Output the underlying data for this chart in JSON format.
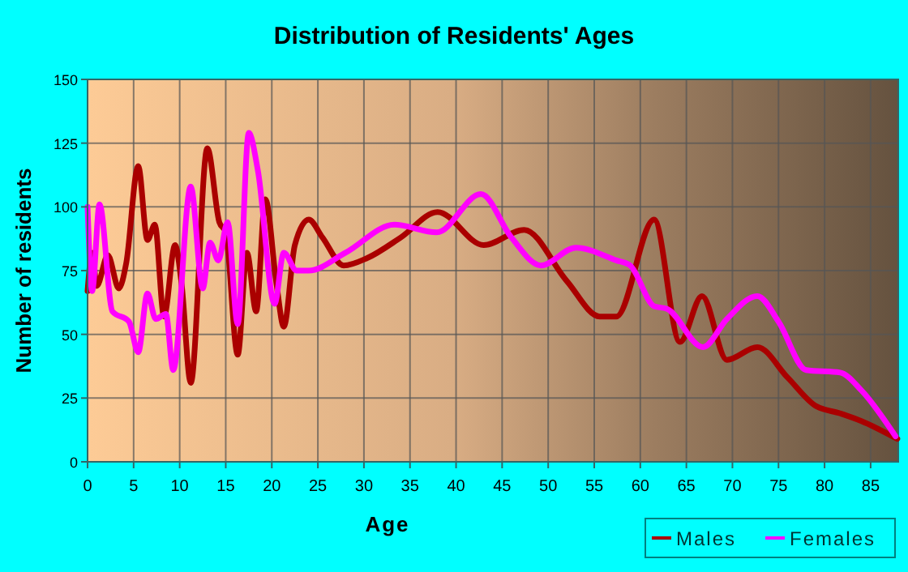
{
  "chart_data": {
    "type": "line",
    "title": "Distribution of Residents' Ages",
    "xlabel": "Age",
    "ylabel": "Number of residents",
    "xlim": [
      0,
      88
    ],
    "xticks": [
      0,
      5,
      10,
      15,
      20,
      25,
      30,
      35,
      40,
      45,
      50,
      55,
      60,
      65,
      70,
      75,
      80,
      85
    ],
    "ylim": [
      0,
      150
    ],
    "yticks": [
      0,
      25,
      50,
      75,
      100,
      125,
      150
    ],
    "grid": true,
    "legend": "bottom right",
    "series": [
      {
        "name": "Males",
        "color": "#aa0000",
        "x": [
          0,
          0.5,
          1,
          2.2,
          3.4,
          4.2,
          5.5,
          6.5,
          7.3,
          8.3,
          9.5,
          10.2,
          11.2,
          13,
          14.3,
          15,
          16.3,
          17.3,
          18.3,
          19.3,
          20.5,
          21.3,
          22.5,
          24,
          25.5,
          27.8,
          30.4,
          34,
          38,
          43,
          47.4,
          52,
          55.6,
          57.4,
          61.5,
          64.3,
          66.7,
          69.4,
          72.7,
          76,
          79,
          81.7,
          84,
          87.9
        ],
        "values": [
          67,
          82,
          69,
          81,
          68,
          78,
          116,
          87,
          93,
          57,
          85,
          70,
          31,
          123,
          94,
          90,
          42,
          82,
          59,
          103,
          70,
          53,
          85,
          95,
          88,
          77,
          80,
          88,
          98,
          85,
          91,
          71,
          57,
          57,
          95,
          47,
          65,
          40,
          45,
          33,
          22,
          19,
          16,
          9
        ]
      },
      {
        "name": "Females",
        "color": "#ff00ff",
        "x": [
          0,
          0.5,
          1.3,
          2.7,
          4.5,
          5.5,
          6.5,
          7.4,
          8.5,
          9.3,
          11.2,
          12.5,
          13.3,
          14.2,
          15.2,
          16.3,
          17.5,
          18.5,
          20.3,
          21.3,
          22.7,
          24,
          28,
          33.3,
          37.9,
          42.7,
          46,
          49.2,
          53,
          57.4,
          58.9,
          61.5,
          62.9,
          66.8,
          69.4,
          72.7,
          75,
          78,
          81.7,
          84,
          87.7
        ],
        "values": [
          100,
          67,
          101,
          59,
          55,
          43,
          66,
          56,
          58,
          36,
          108,
          68,
          86,
          79,
          94,
          54,
          129,
          114,
          62,
          82,
          75,
          75,
          82,
          93,
          90,
          105,
          88,
          77,
          84,
          79,
          77,
          61,
          60,
          45,
          56,
          65,
          55,
          36,
          35,
          28,
          10
        ]
      }
    ]
  }
}
